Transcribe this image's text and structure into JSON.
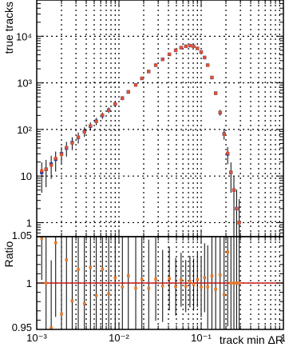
{
  "chart_data": [
    {
      "type": "scatter",
      "panel": "main",
      "xlabel": "track min ΔR",
      "ylabel": "true tracks",
      "xscale": "log",
      "yscale": "log",
      "xlim": [
        0.001,
        1
      ],
      "ylim": [
        0.5,
        60000
      ],
      "grid": true,
      "y_tick_labels": [
        "1",
        "10",
        "10²",
        "10³",
        "10⁴"
      ],
      "x": [
        0.00115,
        0.0013,
        0.0015,
        0.0017,
        0.002,
        0.0023,
        0.0027,
        0.0032,
        0.0038,
        0.0045,
        0.0053,
        0.0063,
        0.0075,
        0.009,
        0.011,
        0.013,
        0.016,
        0.019,
        0.023,
        0.028,
        0.034,
        0.041,
        0.049,
        0.057,
        0.065,
        0.073,
        0.081,
        0.09,
        0.1,
        0.11,
        0.12,
        0.135,
        0.15,
        0.17,
        0.19,
        0.21,
        0.23,
        0.25,
        0.27,
        0.29
      ],
      "series": [
        {
          "values": [
            12,
            14,
            18,
            23,
            30,
            40,
            52,
            68,
            90,
            118,
            150,
            200,
            260,
            350,
            470,
            640,
            900,
            1250,
            1750,
            2400,
            3200,
            4100,
            5000,
            5700,
            6100,
            6300,
            6100,
            5500,
            4600,
            3500,
            2400,
            1300,
            600,
            230,
            80,
            30,
            12,
            5,
            2,
            1
          ]
        },
        {
          "values": [
            13,
            14,
            17,
            24,
            29,
            41,
            51,
            69,
            88,
            120,
            148,
            203,
            257,
            352,
            468,
            645,
            895,
            1255,
            1740,
            2410,
            3190,
            4120,
            4980,
            5720,
            6080,
            6310,
            6090,
            5520,
            4580,
            3520,
            2390,
            1310,
            596,
            232,
            79,
            31,
            12,
            5,
            2,
            1
          ]
        }
      ]
    },
    {
      "type": "scatter",
      "panel": "ratio",
      "ylabel": "Ratio",
      "xscale": "log",
      "xlim": [
        0.001,
        1
      ],
      "ylim": [
        0.95,
        1.05
      ],
      "grid": true,
      "x_tick_labels": [
        "10⁻³",
        "10⁻²",
        "10⁻¹",
        "1"
      ],
      "y_tick_labels": [
        "0.95",
        "1",
        "1.05"
      ],
      "reference_line": 1.0
    }
  ]
}
